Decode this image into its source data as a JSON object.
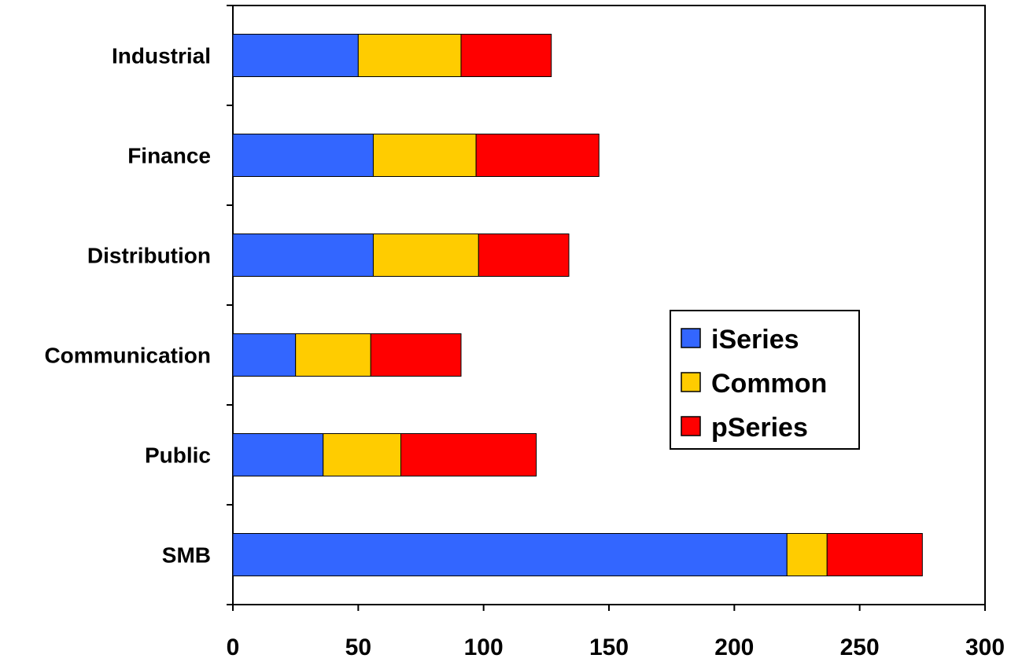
{
  "chart_data": {
    "type": "bar",
    "orientation": "horizontal",
    "stacked": true,
    "categories": [
      "SMB",
      "Public",
      "Communication",
      "Distribution",
      "Finance",
      "Industrial"
    ],
    "series": [
      {
        "name": "iSeries",
        "color": "#3366ff",
        "values": [
          221,
          36,
          25,
          56,
          56,
          50
        ]
      },
      {
        "name": "Common",
        "color": "#ffcc00",
        "values": [
          16,
          31,
          30,
          42,
          41,
          41
        ]
      },
      {
        "name": "pSeries",
        "color": "#ff0000",
        "values": [
          38,
          54,
          36,
          36,
          49,
          36
        ]
      }
    ],
    "xlim": [
      0,
      300
    ],
    "x_ticks": [
      "0",
      "50",
      "100",
      "150",
      "200",
      "250",
      "300"
    ],
    "title": "",
    "xlabel": "",
    "ylabel": "",
    "grid": false,
    "legend": {
      "position": "right-center",
      "entries": [
        "iSeries",
        "Common",
        "pSeries"
      ]
    }
  }
}
